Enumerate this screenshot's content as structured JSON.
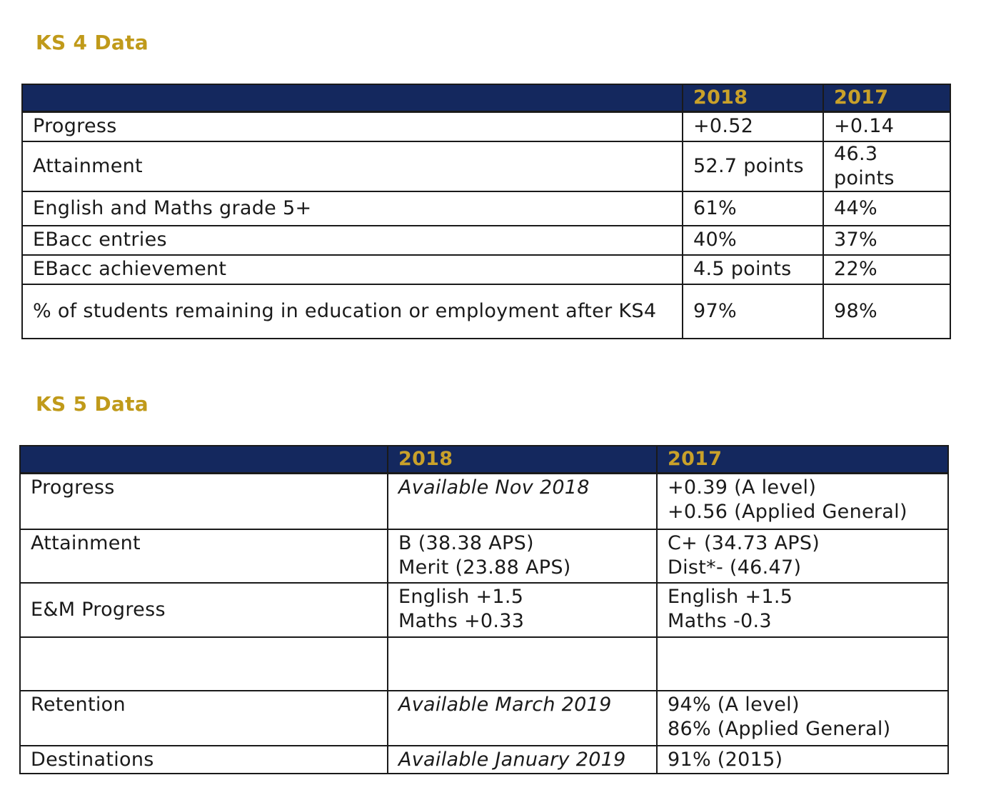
{
  "ks4": {
    "heading": "KS 4 Data",
    "columns": [
      "",
      "2018",
      "2017"
    ],
    "rows": [
      {
        "label": "Progress",
        "y2018": "+0.52",
        "y2017": "+0.14"
      },
      {
        "label": "Attainment",
        "y2018": "52.7 points",
        "y2017": "46.3 points"
      },
      {
        "label": "English and Maths grade 5+",
        "y2018": "61%",
        "y2017": "44%"
      },
      {
        "label": "EBacc entries",
        "y2018": "40%",
        "y2017": "37%"
      },
      {
        "label": "EBacc achievement",
        "y2018": "4.5 points",
        "y2017": "22%"
      },
      {
        "label": "% of students remaining in education or employment after KS4",
        "y2018": "97%",
        "y2017": "98%"
      }
    ]
  },
  "ks5": {
    "heading": "KS 5 Data",
    "columns": [
      "",
      "2018",
      "2017"
    ],
    "rows": [
      {
        "label": "Progress",
        "y2018": [
          "Available Nov 2018"
        ],
        "y2017": [
          "+0.39 (A level)",
          "+0.56 (Applied General)"
        ]
      },
      {
        "label": "Attainment",
        "y2018": [
          "B (38.38 APS)",
          "Merit (23.88 APS)"
        ],
        "y2017": [
          "C+ (34.73 APS)",
          "Dist*-  (46.47)"
        ]
      },
      {
        "label": "E&M Progress",
        "y2018": [
          "English +1.5",
          "Maths +0.33"
        ],
        "y2017": [
          "English +1.5",
          "Maths -0.3"
        ]
      },
      {
        "label": "",
        "y2018": [
          ""
        ],
        "y2017": [
          ""
        ]
      },
      {
        "label": "Retention",
        "y2018": [
          "Available March 2019"
        ],
        "y2017": [
          "94% (A level)",
          "86% (Applied General)"
        ]
      },
      {
        "label": "Destinations",
        "y2018": [
          "Available January 2019"
        ],
        "y2017": [
          "91% (2015)"
        ]
      }
    ]
  }
}
